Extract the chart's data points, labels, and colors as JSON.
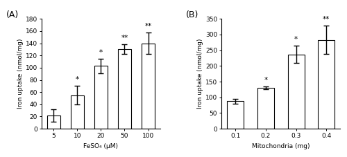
{
  "panel_A": {
    "categories": [
      "5",
      "10",
      "20",
      "50",
      "100"
    ],
    "values": [
      22,
      55,
      103,
      130,
      140
    ],
    "errors": [
      10,
      15,
      12,
      8,
      18
    ],
    "annotations": [
      "",
      "*",
      "*",
      "**",
      "**"
    ],
    "xlabel": "FeSO₄ (μM)",
    "ylabel": "Iron uptake (nmol/mg)",
    "ylim": [
      0,
      180
    ],
    "yticks": [
      0,
      20,
      40,
      60,
      80,
      100,
      120,
      140,
      160,
      180
    ],
    "label": "(A)"
  },
  "panel_B": {
    "categories": [
      "0.1",
      "0.2",
      "0.3",
      "0.4"
    ],
    "values": [
      88,
      130,
      237,
      283
    ],
    "errors": [
      8,
      5,
      28,
      45
    ],
    "annotations": [
      "",
      "*",
      "*",
      "**"
    ],
    "xlabel": "Mitochondria (mg)",
    "ylabel": "Iron uptake (nmol/mg)",
    "ylim": [
      0,
      350
    ],
    "yticks": [
      0,
      50,
      100,
      150,
      200,
      250,
      300,
      350
    ],
    "label": "(B)"
  },
  "bar_color": "#ffffff",
  "bar_edgecolor": "#000000",
  "bar_width": 0.55,
  "capsize": 3,
  "elinewidth": 1.0,
  "fontsize_label": 6.5,
  "fontsize_tick": 6.5,
  "fontsize_annot": 7.5,
  "fontsize_panel": 9
}
